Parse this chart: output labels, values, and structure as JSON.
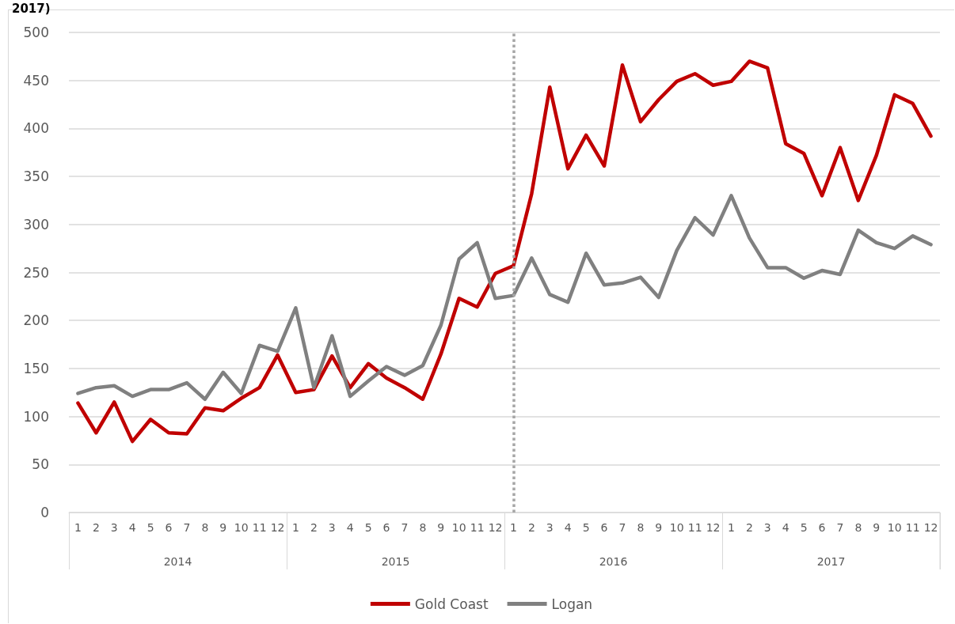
{
  "chart_data": {
    "type": "line",
    "title": "2017)",
    "x": [
      "2014-01",
      "2014-02",
      "2014-03",
      "2014-04",
      "2014-05",
      "2014-06",
      "2014-07",
      "2014-08",
      "2014-09",
      "2014-10",
      "2014-11",
      "2014-12",
      "2015-01",
      "2015-02",
      "2015-03",
      "2015-04",
      "2015-05",
      "2015-06",
      "2015-07",
      "2015-08",
      "2015-09",
      "2015-10",
      "2015-11",
      "2015-12",
      "2016-01",
      "2016-02",
      "2016-03",
      "2016-04",
      "2016-05",
      "2016-06",
      "2016-07",
      "2016-08",
      "2016-09",
      "2016-10",
      "2016-11",
      "2016-12",
      "2017-01",
      "2017-02",
      "2017-03",
      "2017-04",
      "2017-05",
      "2017-06",
      "2017-07",
      "2017-08",
      "2017-09",
      "2017-10",
      "2017-11",
      "2017-12"
    ],
    "xticks": [
      {
        "value": "2014-01",
        "label": "1"
      },
      {
        "value": "2014-02",
        "label": "2"
      },
      {
        "value": "2014-03",
        "label": "3"
      },
      {
        "value": "2014-04",
        "label": "4"
      },
      {
        "value": "2014-05",
        "label": "5"
      },
      {
        "value": "2014-06",
        "label": "6"
      },
      {
        "value": "2014-07",
        "label": "7"
      },
      {
        "value": "2014-08",
        "label": "8"
      },
      {
        "value": "2014-09",
        "label": "9"
      },
      {
        "value": "2014-10",
        "label": "10"
      },
      {
        "value": "2014-11",
        "label": "11"
      },
      {
        "value": "2014-12",
        "label": "12"
      },
      {
        "value": "2015-01",
        "label": "1"
      },
      {
        "value": "2015-02",
        "label": "2"
      },
      {
        "value": "2015-03",
        "label": "3"
      },
      {
        "value": "2015-04",
        "label": "4"
      },
      {
        "value": "2015-05",
        "label": "5"
      },
      {
        "value": "2015-06",
        "label": "6"
      },
      {
        "value": "2015-07",
        "label": "7"
      },
      {
        "value": "2015-08",
        "label": "8"
      },
      {
        "value": "2015-09",
        "label": "9"
      },
      {
        "value": "2015-10",
        "label": "10"
      },
      {
        "value": "2015-11",
        "label": "11"
      },
      {
        "value": "2015-12",
        "label": "12"
      },
      {
        "value": "2016-01",
        "label": "1"
      },
      {
        "value": "2016-02",
        "label": "2"
      },
      {
        "value": "2016-03",
        "label": "3"
      },
      {
        "value": "2016-04",
        "label": "4"
      },
      {
        "value": "2016-05",
        "label": "5"
      },
      {
        "value": "2016-06",
        "label": "6"
      },
      {
        "value": "2016-07",
        "label": "7"
      },
      {
        "value": "2016-08",
        "label": "8"
      },
      {
        "value": "2016-09",
        "label": "9"
      },
      {
        "value": "2016-10",
        "label": "10"
      },
      {
        "value": "2016-11",
        "label": "11"
      },
      {
        "value": "2016-12",
        "label": "12"
      },
      {
        "value": "2017-01",
        "label": "1"
      },
      {
        "value": "2017-02",
        "label": "2"
      },
      {
        "value": "2017-03",
        "label": "3"
      },
      {
        "value": "2017-04",
        "label": "4"
      },
      {
        "value": "2017-05",
        "label": "5"
      },
      {
        "value": "2017-06",
        "label": "6"
      },
      {
        "value": "2017-07",
        "label": "7"
      },
      {
        "value": "2017-08",
        "label": "8"
      },
      {
        "value": "2017-09",
        "label": "9"
      },
      {
        "value": "2017-10",
        "label": "10"
      },
      {
        "value": "2017-11",
        "label": "11"
      },
      {
        "value": "2017-12",
        "label": "12"
      }
    ],
    "xlim": [
      "2013-12-15",
      "2017-12-16"
    ],
    "annotations": [
      "2014",
      "2015",
      "2016",
      "2017"
    ],
    "series": [
      {
        "name": "Gold Coast",
        "color": "#c00000",
        "values": [
          114,
          83,
          115,
          74,
          97,
          83,
          82,
          109,
          106,
          119,
          130,
          164,
          125,
          128,
          163,
          130,
          155,
          140,
          130,
          118,
          165,
          223,
          214,
          249,
          257,
          332,
          443,
          358,
          393,
          361,
          466,
          407,
          430,
          449,
          457,
          445,
          449,
          470,
          463,
          384,
          374,
          330,
          380,
          325,
          372,
          435,
          426,
          392
        ]
      },
      {
        "name": "Logan",
        "color": "#808080",
        "values": [
          124,
          130,
          132,
          121,
          128,
          128,
          135,
          118,
          146,
          124,
          174,
          168,
          213,
          130,
          184,
          121,
          137,
          152,
          143,
          153,
          195,
          264,
          281,
          223,
          226,
          265,
          227,
          219,
          270,
          237,
          239,
          245,
          224,
          273,
          307,
          289,
          330,
          286,
          255,
          255,
          244,
          252,
          248,
          294,
          281,
          275,
          288,
          279
        ]
      }
    ],
    "ylim": [
      0,
      500
    ],
    "yticks": [
      0,
      50,
      100,
      150,
      200,
      250,
      300,
      350,
      400,
      450,
      500
    ],
    "grid": "y",
    "legend": "bottom",
    "marker": "none",
    "line_style": "solid",
    "ref_lines": [
      {
        "axis": "x",
        "value": "2016-01",
        "color": "#a6a6a6",
        "line_style": "dotted"
      }
    ]
  }
}
